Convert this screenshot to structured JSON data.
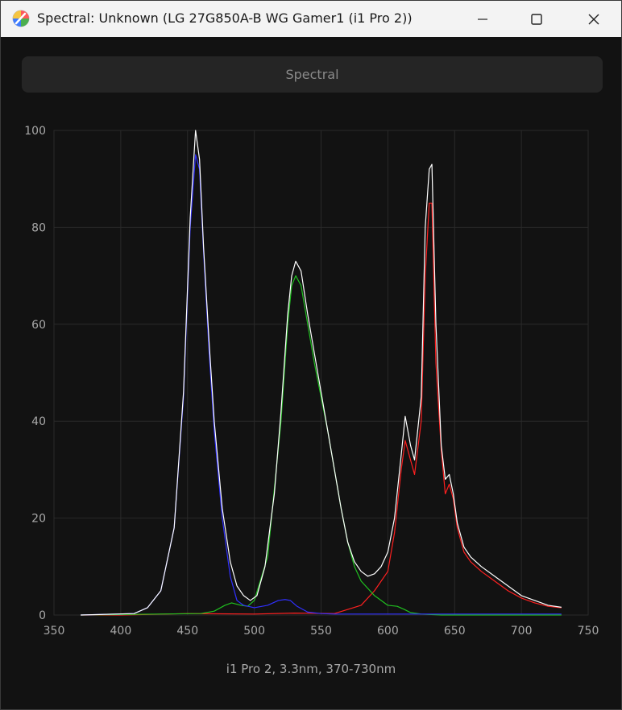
{
  "window": {
    "title": "Spectral: Unknown (LG 27G850A-B WG Gamer1 (i1 Pro 2))",
    "app_icon": "color-wheel-icon"
  },
  "toolbar": {
    "spectral_label": "Spectral"
  },
  "caption": "i1 Pro 2, 3.3nm, 370-730nm",
  "chart_data": {
    "type": "line",
    "title": "",
    "xlabel": "",
    "ylabel": "",
    "xlim": [
      350,
      750
    ],
    "ylim": [
      0,
      100
    ],
    "x_ticks": [
      350,
      400,
      450,
      500,
      550,
      600,
      650,
      700,
      750
    ],
    "y_ticks": [
      0,
      20,
      40,
      60,
      80,
      100
    ],
    "grid": true,
    "legend": "none",
    "series": [
      {
        "color": "#ff2020",
        "x": [
          370,
          400,
          450,
          500,
          530,
          560,
          580,
          590,
          600,
          605,
          610,
          613,
          617,
          620,
          625,
          628,
          631,
          633,
          636,
          640,
          643,
          646,
          649,
          652,
          657,
          662,
          670,
          680,
          690,
          700,
          710,
          720,
          730
        ],
        "y": [
          0,
          0,
          0.3,
          0.2,
          0.4,
          0.3,
          2,
          5,
          9,
          17,
          30,
          36,
          32,
          29,
          40,
          70,
          85,
          85,
          52,
          34,
          25,
          27,
          24,
          18,
          13,
          11,
          9,
          7,
          5,
          3.5,
          2.5,
          1.8,
          1.5
        ]
      },
      {
        "color": "#20c020",
        "x": [
          370,
          460,
          470,
          478,
          483,
          490,
          495,
          500,
          510,
          520,
          525,
          528,
          531,
          535,
          540,
          545,
          550,
          555,
          560,
          565,
          570,
          575,
          580,
          590,
          600,
          607,
          612,
          617,
          625,
          640,
          730
        ],
        "y": [
          0,
          0.3,
          0.8,
          2,
          2.5,
          2,
          1.8,
          3,
          12,
          40,
          60,
          68,
          70,
          68,
          60,
          52,
          45,
          38,
          30,
          22,
          15,
          10,
          7,
          4,
          2,
          1.8,
          1.2,
          0.5,
          0.2,
          0,
          0
        ]
      },
      {
        "color": "#3030ff",
        "x": [
          370,
          410,
          420,
          430,
          440,
          447,
          452,
          456,
          459,
          462,
          466,
          470,
          476,
          482,
          487,
          492,
          500,
          510,
          518,
          523,
          527,
          532,
          540,
          550,
          560,
          600,
          730
        ],
        "y": [
          0,
          0.3,
          1.5,
          5,
          18,
          45,
          80,
          95,
          92,
          75,
          55,
          38,
          20,
          8,
          3,
          2,
          1.5,
          2,
          3,
          3.2,
          3,
          1.8,
          0.6,
          0.3,
          0.2,
          0.2,
          0.2
        ]
      },
      {
        "color": "#ffffff",
        "x": [
          370,
          410,
          420,
          430,
          440,
          447,
          452,
          456,
          459,
          462,
          466,
          470,
          476,
          482,
          487,
          492,
          497,
          502,
          508,
          515,
          520,
          525,
          528,
          531,
          535,
          540,
          545,
          550,
          555,
          560,
          565,
          570,
          575,
          580,
          585,
          590,
          595,
          600,
          605,
          610,
          613,
          617,
          620,
          625,
          628,
          631,
          633,
          636,
          640,
          643,
          646,
          649,
          652,
          657,
          662,
          670,
          680,
          690,
          700,
          710,
          720,
          730
        ],
        "y": [
          0,
          0.3,
          1.5,
          5,
          18,
          46,
          82,
          100,
          94,
          76,
          57,
          40,
          22,
          11,
          6,
          4,
          3,
          4,
          10,
          25,
          42,
          62,
          70,
          73,
          71,
          62,
          54,
          46,
          38,
          30,
          22,
          15,
          11,
          9,
          8,
          8.5,
          10,
          13,
          20,
          33,
          41,
          35,
          32,
          45,
          80,
          92,
          93,
          60,
          35,
          28,
          29,
          25,
          19,
          14,
          12,
          10,
          8,
          6,
          4,
          3,
          2,
          1.6
        ]
      }
    ]
  }
}
